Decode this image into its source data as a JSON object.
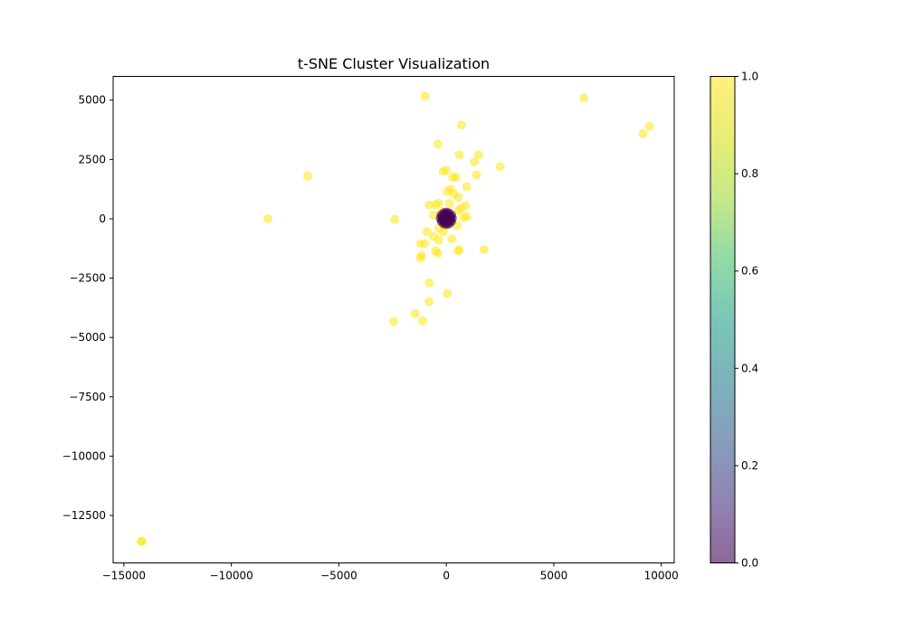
{
  "chart_data": {
    "type": "scatter",
    "title": "t-SNE Cluster Visualization",
    "xlabel": "",
    "ylabel": "",
    "xlim": [
      -15500,
      10600
    ],
    "ylim": [
      -14500,
      6000
    ],
    "xticks": [
      -15000,
      -10000,
      -5000,
      0,
      5000,
      10000
    ],
    "xtick_labels": [
      "−15000",
      "−10000",
      "−5000",
      "0",
      "5000",
      "10000"
    ],
    "yticks": [
      5000,
      2500,
      0,
      -2500,
      -5000,
      -7500,
      -10000,
      -12500
    ],
    "ytick_labels": [
      "5000",
      "2500",
      "0",
      "−2500",
      "−5000",
      "−7500",
      "−10000",
      "−12500"
    ],
    "colorbar": {
      "min": 0.0,
      "max": 1.0,
      "ticks": [
        0.0,
        0.2,
        0.4,
        0.6,
        0.8,
        1.0
      ],
      "tick_labels": [
        "0.0",
        "0.2",
        "0.4",
        "0.6",
        "0.8",
        "1.0"
      ],
      "colormap": "viridis"
    },
    "point_alpha": 0.6,
    "series": [
      {
        "value": 1,
        "color": "#fde725",
        "points": [
          [
            -1000,
            5170
          ],
          [
            6400,
            5090
          ],
          [
            9450,
            3900
          ],
          [
            9150,
            3600
          ],
          [
            700,
            3950
          ],
          [
            -400,
            3150
          ],
          [
            -6450,
            1800
          ],
          [
            -8300,
            0
          ],
          [
            -2400,
            -20
          ],
          [
            -14200,
            -13600
          ],
          [
            -14150,
            -13580
          ],
          [
            600,
            2700
          ],
          [
            1500,
            2700
          ],
          [
            2500,
            2200
          ],
          [
            1300,
            2400
          ],
          [
            0,
            2050
          ],
          [
            -150,
            2000
          ],
          [
            300,
            1750
          ],
          [
            450,
            1750
          ],
          [
            1400,
            1850
          ],
          [
            950,
            1350
          ],
          [
            200,
            1250
          ],
          [
            50,
            1150
          ],
          [
            350,
            1050
          ],
          [
            550,
            900
          ],
          [
            -800,
            580
          ],
          [
            -500,
            600
          ],
          [
            -350,
            650
          ],
          [
            150,
            650
          ],
          [
            900,
            550
          ],
          [
            700,
            450
          ],
          [
            550,
            350
          ],
          [
            -600,
            150
          ],
          [
            950,
            100
          ],
          [
            800,
            50
          ],
          [
            -150,
            -100
          ],
          [
            250,
            -150
          ],
          [
            -350,
            -400
          ],
          [
            500,
            -300
          ],
          [
            -900,
            -550
          ],
          [
            -150,
            -550
          ],
          [
            -600,
            -750
          ],
          [
            -350,
            -900
          ],
          [
            250,
            -850
          ],
          [
            -1200,
            -1050
          ],
          [
            -1000,
            -1050
          ],
          [
            -500,
            -1350
          ],
          [
            -400,
            -1450
          ],
          [
            550,
            -1350
          ],
          [
            600,
            -1300
          ],
          [
            1750,
            -1300
          ],
          [
            -1150,
            -1550
          ],
          [
            -1200,
            -1650
          ],
          [
            -800,
            -2700
          ],
          [
            50,
            -3150
          ],
          [
            -800,
            -3500
          ],
          [
            -1450,
            -4000
          ],
          [
            -1100,
            -4300
          ],
          [
            -2450,
            -4330
          ],
          [
            100,
            200
          ],
          [
            -200,
            300
          ],
          [
            0,
            -300
          ],
          [
            -100,
            100
          ],
          [
            150,
            -50
          ]
        ]
      },
      {
        "value": 0,
        "color": "#440154",
        "points": [
          [
            0,
            280
          ],
          [
            120,
            250
          ],
          [
            240,
            160
          ],
          [
            280,
            30
          ],
          [
            240,
            -110
          ],
          [
            130,
            -210
          ],
          [
            0,
            -240
          ],
          [
            -130,
            -210
          ],
          [
            -240,
            -110
          ],
          [
            -280,
            30
          ],
          [
            -240,
            160
          ],
          [
            -120,
            250
          ],
          [
            60,
            200
          ],
          [
            -60,
            200
          ],
          [
            200,
            80
          ],
          [
            -200,
            80
          ],
          [
            180,
            -60
          ],
          [
            -180,
            -60
          ],
          [
            80,
            -150
          ],
          [
            -80,
            -150
          ],
          [
            0,
            120
          ],
          [
            100,
            40
          ],
          [
            -100,
            40
          ],
          [
            50,
            -60
          ],
          [
            -50,
            -60
          ]
        ]
      }
    ]
  }
}
